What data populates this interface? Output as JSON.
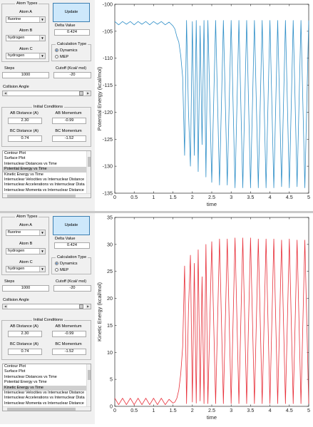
{
  "panels": [
    {
      "id": "top",
      "controls": {
        "atom_types_title": "Atom Types",
        "atom_a_label": "Atom A",
        "atom_a_value": "fluorine",
        "atom_b_label": "Atom B",
        "atom_b_value": "hydrogen",
        "atom_c_label": "Atom C",
        "atom_c_value": "hydrogen",
        "update_label": "Update",
        "delta_label": "Delta Value",
        "delta_value": "0.424",
        "calc_type_title": "Calculation Type",
        "dynamics_label": "Dynamics",
        "mep_label": "MEP",
        "steps_label": "Steps",
        "steps_value": "1000",
        "cutoff_label": "Cutoff (Kcal/ mol)",
        "cutoff_value": "-20",
        "collision_angle_label": "Collision Angle",
        "collision_angle_level": 0.97,
        "initial_conditions_title": "Initial Conditions",
        "ab_distance_label": "AB Distance (A)",
        "ab_distance_value": "2.30",
        "ab_momentum_label": "AB Momentum",
        "ab_momentum_value": "-0.99",
        "bc_distance_label": "BC Distance (A)",
        "bc_distance_value": "0.74",
        "bc_momentum_label": "BC Momentum",
        "bc_momentum_value": "-1.52",
        "plot_list": [
          "Contour Plot",
          "Surface Plot",
          "Internuclear Distances vs Time",
          "Potential Energy vs Time",
          "Kinetic Energy vs Time",
          "Internuclear Velocities vs Internuclear Distance",
          "Internuclear Accelerations vs Internuclear Dista",
          "Internuclear Momenta vs Internuclear Distance"
        ],
        "selected_plot": "Potential Energy vs Time"
      },
      "chart_data": {
        "type": "line",
        "xlabel": "time",
        "ylabel": "Potential Energy (kcal/mol)",
        "xlim": [
          0,
          5
        ],
        "ylim": [
          -135,
          -100
        ],
        "xticks": [
          "0",
          "0.5",
          "1",
          "1.5",
          "2",
          "2.5",
          "3",
          "3.5",
          "4",
          "4.5",
          "5"
        ],
        "yticks": [
          "-100",
          "-105",
          "-110",
          "-115",
          "-120",
          "-125",
          "-130",
          "-135"
        ],
        "color": "#2f8fc8",
        "series": [
          {
            "x": [
              0,
              0.1,
              0.2,
              0.3,
              0.4,
              0.5,
              0.6,
              0.7,
              0.8,
              0.9,
              1.0,
              1.1,
              1.2,
              1.3,
              1.4,
              1.5,
              1.55,
              1.6,
              1.65,
              1.7,
              1.75,
              1.8,
              1.85,
              1.9,
              1.95,
              2.0,
              2.05,
              2.1,
              2.15,
              2.2,
              2.25,
              2.3,
              2.35,
              2.4,
              2.5,
              2.6,
              2.7,
              2.8,
              2.9,
              3.0,
              3.1,
              3.2,
              3.3,
              3.4,
              3.5,
              3.6,
              3.7,
              3.8,
              3.9,
              4.0,
              4.1,
              4.2,
              4.3,
              4.4,
              4.5,
              4.6,
              4.7,
              4.8,
              4.9,
              5.0
            ],
            "y": [
              -103.2,
              -103.8,
              -103.2,
              -103.7,
              -103.2,
              -103.8,
              -103.2,
              -103.7,
              -103.2,
              -103.8,
              -103.2,
              -103.7,
              -103.2,
              -103.8,
              -103.3,
              -104.0,
              -104.6,
              -106.0,
              -107.0,
              -109.5,
              -113.5,
              -128.0,
              -103.0,
              -120.0,
              -130.0,
              -103.2,
              -128.0,
              -103.0,
              -131.0,
              -104.0,
              -126.0,
              -103.0,
              -132.0,
              -103.0,
              -133.0,
              -103.0,
              -133.5,
              -103.0,
              -133.5,
              -103.0,
              -134.0,
              -103.0,
              -134.0,
              -103.0,
              -134.0,
              -103.0,
              -134.0,
              -103.0,
              -134.0,
              -103.0,
              -134.0,
              -103.0,
              -133.8,
              -103.0,
              -134.0,
              -103.0,
              -133.8,
              -103.0,
              -134.0,
              -103.0
            ]
          }
        ]
      }
    },
    {
      "id": "bottom",
      "controls": {
        "atom_types_title": "Atom Types",
        "atom_a_label": "Atom A",
        "atom_a_value": "fluorine",
        "atom_b_label": "Atom B",
        "atom_b_value": "hydrogen",
        "atom_c_label": "Atom C",
        "atom_c_value": "hydrogen",
        "update_label": "Update",
        "delta_label": "Delta Value",
        "delta_value": "0.424",
        "calc_type_title": "Calculation Type",
        "dynamics_label": "Dynamics",
        "mep_label": "MEP",
        "steps_label": "Steps",
        "steps_value": "1000",
        "cutoff_label": "Cutoff (Kcal/ mol)",
        "cutoff_value": "-20",
        "collision_angle_label": "Collision Angle",
        "collision_angle_level": 0.97,
        "initial_conditions_title": "Initial Conditions",
        "ab_distance_label": "AB Distance (A)",
        "ab_distance_value": "2.30",
        "ab_momentum_label": "AB Momentum",
        "ab_momentum_value": "-0.99",
        "bc_distance_label": "BC Distance (A)",
        "bc_distance_value": "0.74",
        "bc_momentum_label": "BC Momentum",
        "bc_momentum_value": "-1.52",
        "plot_list": [
          "Contour Plot",
          "Surface Plot",
          "Internuclear Distances vs Time",
          "Potential Energy vs Time",
          "Kinetic Energy vs Time",
          "Internuclear Velocities vs Internuclear Distance",
          "Internuclear Accelerations vs Internuclear Dista",
          "Internuclear Momenta vs Internuclear Distance"
        ],
        "selected_plot": "Kinetic Energy vs Time"
      },
      "chart_data": {
        "type": "line",
        "xlabel": "time",
        "ylabel": "Kinetic Energy (kcal/mol)",
        "xlim": [
          0,
          5
        ],
        "ylim": [
          0,
          35
        ],
        "xticks": [
          "0",
          "0.5",
          "1",
          "1.5",
          "2",
          "2.5",
          "3",
          "3.5",
          "4",
          "4.5",
          "5"
        ],
        "yticks": [
          "0",
          "5",
          "10",
          "15",
          "20",
          "25",
          "30",
          "35"
        ],
        "color": "#e8303a",
        "series": [
          {
            "x": [
              0,
              0.1,
              0.2,
              0.3,
              0.4,
              0.5,
              0.6,
              0.7,
              0.8,
              0.9,
              1.0,
              1.1,
              1.2,
              1.3,
              1.4,
              1.5,
              1.55,
              1.6,
              1.65,
              1.7,
              1.75,
              1.8,
              1.85,
              1.9,
              1.95,
              2.0,
              2.05,
              2.1,
              2.15,
              2.2,
              2.25,
              2.3,
              2.35,
              2.4,
              2.5,
              2.6,
              2.7,
              2.8,
              2.9,
              3.0,
              3.1,
              3.2,
              3.3,
              3.4,
              3.5,
              3.6,
              3.7,
              3.8,
              3.9,
              4.0,
              4.1,
              4.2,
              4.3,
              4.4,
              4.5,
              4.6,
              4.7,
              4.8,
              4.9,
              5.0
            ],
            "y": [
              1.5,
              0.3,
              1.5,
              0.3,
              1.5,
              0.3,
              1.5,
              0.3,
              1.5,
              0.3,
              1.5,
              0.3,
              1.5,
              0.3,
              1.3,
              0.6,
              0.8,
              1.5,
              3.0,
              6.0,
              11.0,
              26.0,
              0.5,
              18.0,
              28.0,
              0.8,
              26.5,
              0.6,
              29.0,
              1.0,
              24.0,
              0.5,
              30.0,
              0.5,
              30.5,
              0.5,
              31.0,
              0.5,
              31.0,
              0.5,
              31.2,
              0.5,
              31.2,
              0.5,
              31.2,
              0.5,
              31.0,
              0.5,
              31.0,
              0.5,
              31.0,
              0.5,
              30.8,
              0.5,
              31.0,
              0.5,
              30.8,
              0.5,
              30.8,
              0.5
            ]
          }
        ]
      }
    }
  ]
}
